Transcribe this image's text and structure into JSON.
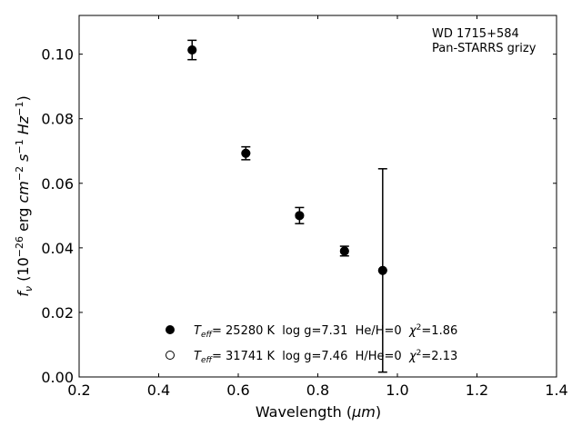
{
  "chart_data": {
    "type": "scatter",
    "title": "",
    "xlabel_text": "Wavelength (",
    "xlabel_unit": "μm",
    "xlabel_close": ")",
    "ylabel": {
      "f": "f",
      "nu": "ν",
      "open": " (10",
      "exp1": "−26",
      "erg": " erg ",
      "cm": "cm",
      "exp2": "−2",
      "s": " s",
      "exp3": "−1",
      "hz": " Hz",
      "exp4": "−1",
      "close": ")"
    },
    "xlim": [
      0.2,
      1.4
    ],
    "ylim": [
      0.0,
      0.112
    ],
    "xticks": [
      "0.2",
      "0.4",
      "0.6",
      "0.8",
      "1.0",
      "1.2",
      "1.4"
    ],
    "yticks": [
      "0.00",
      "0.02",
      "0.04",
      "0.06",
      "0.08",
      "0.10"
    ],
    "annotation": [
      "WD 1715+584",
      "Pan-STARRS grizy"
    ],
    "observed": {
      "x": [
        0.484,
        0.619,
        0.754,
        0.867,
        0.963
      ],
      "y": [
        0.1013,
        0.0693,
        0.05,
        0.039,
        0.033
      ],
      "yerr": [
        0.003,
        0.002,
        0.0025,
        0.0015,
        0.0315
      ]
    },
    "series": [
      {
        "name": "Teff= 25280 K  log g=7.31  He/H=0  χ2=1.86",
        "marker": "filled-circle",
        "x": [
          0.484,
          0.619,
          0.754,
          0.867,
          0.963
        ],
        "y": [
          0.1013,
          0.0693,
          0.05,
          0.039,
          0.033
        ]
      },
      {
        "name": "Teff= 31741 K  log g=7.46  H/He=0  χ2=2.13",
        "marker": "open-circle",
        "x": [
          0.484,
          0.619,
          0.754,
          0.867,
          0.963
        ],
        "y": [
          0.1013,
          0.0693,
          0.05,
          0.039,
          0.033
        ]
      }
    ],
    "legend": [
      {
        "marker": "filled-circle",
        "T": "T",
        "eff": "eff",
        "temp": "= 25280 K  log g=7.31  He/H=0  ",
        "chi": "χ",
        "two": "2",
        "val": "=1.86"
      },
      {
        "marker": "open-circle",
        "T": "T",
        "eff": "eff",
        "temp": "= 31741 K  log g=7.46  H/He=0  ",
        "chi": "χ",
        "two": "2",
        "val": "=2.13"
      }
    ],
    "legend_position": "lower-center",
    "grid": false,
    "colors": {
      "marker": "#000000",
      "axis": "#000000",
      "background": "#ffffff"
    }
  }
}
